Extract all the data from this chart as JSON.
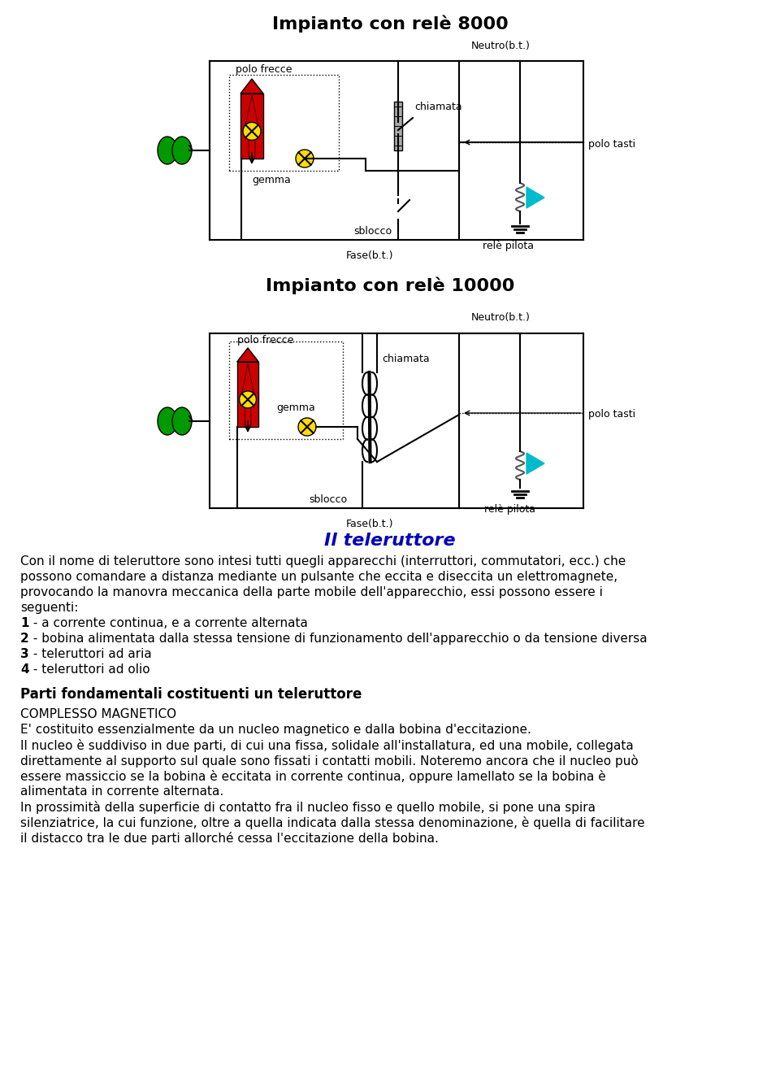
{
  "title1": "Impianto con relè 8000",
  "title2": "Impianto con relè 10000",
  "section_title": "Il teleruttore",
  "body_text": [
    "Con il nome di teleruttore sono intesi tutti quegli apparecchi (interruttori, commutatori, ecc.) che",
    "possono comandare a distanza mediante un pulsante che eccita e diseccita un elettromagnete,",
    "provocando la manovra meccanica della parte mobile dell'apparecchio, essi possono essere i",
    "seguenti:"
  ],
  "list_items": [
    {
      "num": "1",
      "text": " - a corrente continua, e a corrente alternata"
    },
    {
      "num": "2",
      "text": " - bobina alimentata dalla stessa tensione di funzionamento dell'apparecchio o da tensione diversa"
    },
    {
      "num": "3",
      "text": " - teleruttori ad aria"
    },
    {
      "num": "4",
      "text": " - teleruttori ad olio"
    }
  ],
  "section2_title": "Parti fondamentali costituenti un teleruttore",
  "section3_title": "COMPLESSO MAGNETICO",
  "body_text2": [
    "E' costituito essenzialmente da un nucleo magnetico e dalla bobina d'eccitazione.",
    "Il nucleo è suddiviso in due parti, di cui una fissa, solidale all'installatura, ed una mobile, collegata",
    "direttamente al supporto sul quale sono fissati i contatti mobili. Noteremo ancora che il nucleo può",
    "essere massiccio se la bobina è eccitata in corrente continua, oppure lamellato se la bobina è",
    "alimentata in corrente alternata.",
    "In prossimità della superficie di contatto fra il nucleo fisso e quello mobile, si pone una spira",
    "silenziatrice, la cui funzione, oltre a quella indicata dalla stessa denominazione, è quella di facilitare",
    "il distacco tra le due parti allorché cessa l'eccitazione della bobina."
  ],
  "bg_color": "#ffffff",
  "text_color": "#000000",
  "title_color": "#0000bb",
  "diagram_line_color": "#000000",
  "red_color": "#cc0000",
  "yellow_color": "#ffdd00",
  "green_color": "#009900",
  "cyan_color": "#00bbcc",
  "gray_color": "#aaaaaa"
}
